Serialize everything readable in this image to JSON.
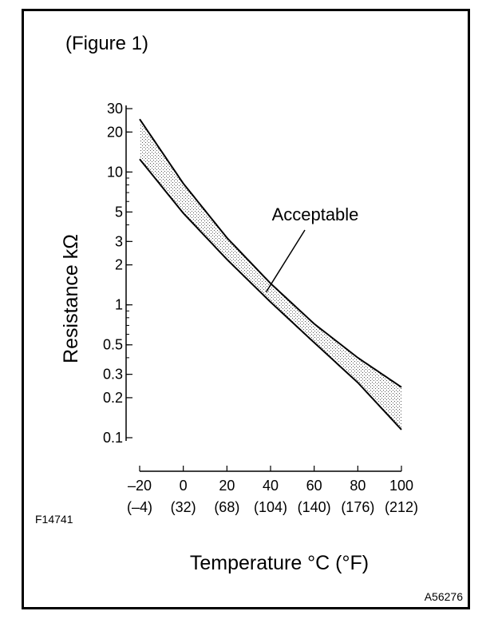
{
  "chart_data": {
    "type": "area",
    "title": "(Figure 1)",
    "xlabel": "Temperature °C (°F)",
    "ylabel": "Resistance kΩ",
    "y_scale": "log",
    "xlim": [
      -20,
      100
    ],
    "ylim": [
      0.1,
      30
    ],
    "x_ticks": [
      {
        "value": -20,
        "label": "–20",
        "sublabel": "(–4)"
      },
      {
        "value": 0,
        "label": "0",
        "sublabel": "(32)"
      },
      {
        "value": 20,
        "label": "20",
        "sublabel": "(68)"
      },
      {
        "value": 40,
        "label": "40",
        "sublabel": "(104)"
      },
      {
        "value": 60,
        "label": "60",
        "sublabel": "(140)"
      },
      {
        "value": 80,
        "label": "80",
        "sublabel": "(176)"
      },
      {
        "value": 100,
        "label": "100",
        "sublabel": "(212)"
      }
    ],
    "y_ticks": [
      {
        "value": 30,
        "label": "30"
      },
      {
        "value": 20,
        "label": "20"
      },
      {
        "value": 10,
        "label": "10"
      },
      {
        "value": 5,
        "label": "5"
      },
      {
        "value": 3,
        "label": "3"
      },
      {
        "value": 2,
        "label": "2"
      },
      {
        "value": 1,
        "label": "1"
      },
      {
        "value": 0.5,
        "label": "0.5"
      },
      {
        "value": 0.3,
        "label": "0.3"
      },
      {
        "value": 0.2,
        "label": "0.2"
      },
      {
        "value": 0.1,
        "label": "0.1"
      }
    ],
    "series": [
      {
        "role": "upper",
        "x": [
          -20,
          0,
          20,
          40,
          60,
          80,
          100
        ],
        "y": [
          25,
          8.2,
          3.2,
          1.45,
          0.72,
          0.4,
          0.24
        ]
      },
      {
        "role": "lower",
        "x": [
          -20,
          0,
          20,
          40,
          60,
          80,
          100
        ],
        "y": [
          12.5,
          4.9,
          2.2,
          1.05,
          0.52,
          0.26,
          0.115
        ]
      }
    ],
    "annotations": [
      {
        "text": "Acceptable",
        "x": 38,
        "y": 1.25
      }
    ],
    "colors": {
      "band": "#c8c8c8",
      "line": "#000000"
    }
  },
  "labels": {
    "figure_code_left": "F14741",
    "figure_code_right": "A56276"
  }
}
